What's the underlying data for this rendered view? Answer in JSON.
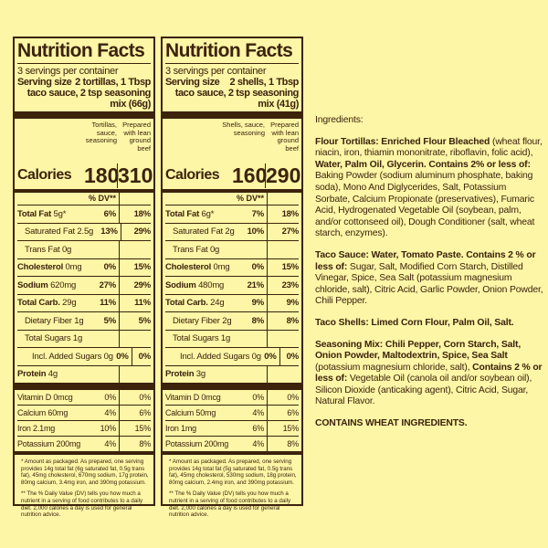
{
  "panels": [
    {
      "title": "Nutrition Facts",
      "servings": "3 servings per container",
      "serving_size_label": "Serving size",
      "serving_size": "2 tortillas, 1 Tbsp taco sauce, 2 tsp seasoning mix (66g)",
      "col_headers": [
        "Tortillas, sauce, seasoning",
        "Prepared with lean ground beef"
      ],
      "calories_label": "Calories",
      "calories": [
        "180",
        "310"
      ],
      "dv_header": "% DV**",
      "rows": [
        {
          "name": "Total Fat",
          "amount": "5g*",
          "dv": [
            "6%",
            "18%"
          ],
          "style": "bold"
        },
        {
          "name": "Saturated Fat",
          "amount": "2.5g",
          "dv": [
            "13%",
            "29%"
          ],
          "style": "indent"
        },
        {
          "name": "Trans Fat",
          "amount": "0g",
          "dv": [],
          "style": "indent"
        },
        {
          "name": "Cholesterol",
          "amount": "0mg",
          "dv": [
            "0%",
            "15%"
          ],
          "style": "bold"
        },
        {
          "name": "Sodium",
          "amount": "620mg",
          "dv": [
            "27%",
            "29%"
          ],
          "style": "bold"
        },
        {
          "name": "Total Carb.",
          "amount": "29g",
          "dv": [
            "11%",
            "11%"
          ],
          "style": "bold"
        },
        {
          "name": "Dietary Fiber",
          "amount": "1g",
          "dv": [
            "5%",
            "5%"
          ],
          "style": "indent"
        },
        {
          "name": "Total Sugars",
          "amount": "1g",
          "dv": [],
          "style": "indent"
        },
        {
          "name": "Incl. Added Sugars",
          "amount": "0g",
          "dv": [
            "0%",
            "0%"
          ],
          "style": "indent2"
        },
        {
          "name": "Protein",
          "amount": "4g",
          "dv": [],
          "style": "bold"
        }
      ],
      "micros": [
        {
          "name": "Vitamin D",
          "amount": "0mcg",
          "dv": [
            "0%",
            "0%"
          ]
        },
        {
          "name": "Calcium",
          "amount": "60mg",
          "dv": [
            "4%",
            "6%"
          ]
        },
        {
          "name": "Iron",
          "amount": "2.1mg",
          "dv": [
            "10%",
            "15%"
          ]
        },
        {
          "name": "Potassium",
          "amount": "200mg",
          "dv": [
            "4%",
            "8%"
          ]
        }
      ],
      "footnotes": [
        "* Amount as packaged. As prepared, one serving provides 14g total fat (6g saturated fat, 0.5g trans fat), 45mg cholesterol, 670mg sodium, 17g protein, 80mg calcium, 3.4mg iron, and 390mg potassium.",
        "** The % Daily Value (DV) tells you how much a nutrient in a serving of food contributes to a daily diet. 2,000 calories a day is used for general nutrition advice."
      ]
    },
    {
      "title": "Nutrition Facts",
      "servings": "3 servings per container",
      "serving_size_label": "Serving size",
      "serving_size": "2 shells, 1 Tbsp taco sauce, 2 tsp seasoning mix (41g)",
      "col_headers": [
        "Shells, sauce, seasoning",
        "Prepared with lean ground beef"
      ],
      "calories_label": "Calories",
      "calories": [
        "160",
        "290"
      ],
      "dv_header": "% DV**",
      "rows": [
        {
          "name": "Total Fat",
          "amount": "6g*",
          "dv": [
            "7%",
            "18%"
          ],
          "style": "bold"
        },
        {
          "name": "Saturated Fat",
          "amount": "2g",
          "dv": [
            "10%",
            "27%"
          ],
          "style": "indent"
        },
        {
          "name": "Trans Fat",
          "amount": "0g",
          "dv": [],
          "style": "indent"
        },
        {
          "name": "Cholesterol",
          "amount": "0mg",
          "dv": [
            "0%",
            "15%"
          ],
          "style": "bold"
        },
        {
          "name": "Sodium",
          "amount": "480mg",
          "dv": [
            "21%",
            "23%"
          ],
          "style": "bold"
        },
        {
          "name": "Total Carb.",
          "amount": "24g",
          "dv": [
            "9%",
            "9%"
          ],
          "style": "bold"
        },
        {
          "name": "Dietary Fiber",
          "amount": "2g",
          "dv": [
            "8%",
            "8%"
          ],
          "style": "indent"
        },
        {
          "name": "Total Sugars",
          "amount": "1g",
          "dv": [],
          "style": "indent"
        },
        {
          "name": "Incl. Added Sugars",
          "amount": "0g",
          "dv": [
            "0%",
            "0%"
          ],
          "style": "indent2"
        },
        {
          "name": "Protein",
          "amount": "3g",
          "dv": [],
          "style": "bold"
        }
      ],
      "micros": [
        {
          "name": "Vitamin D",
          "amount": "0mcg",
          "dv": [
            "0%",
            "0%"
          ]
        },
        {
          "name": "Calcium",
          "amount": "50mg",
          "dv": [
            "4%",
            "6%"
          ]
        },
        {
          "name": "Iron",
          "amount": "1mg",
          "dv": [
            "6%",
            "15%"
          ]
        },
        {
          "name": "Potassium",
          "amount": "200mg",
          "dv": [
            "4%",
            "8%"
          ]
        }
      ],
      "footnotes": [
        "* Amount as packaged. As prepared, one serving provides 14g total fat (5g saturated fat, 0.5g trans fat), 45mg cholesterol, 530mg sodium, 18g protein, 80mg calcium, 2.4mg iron, and 390mg potassium.",
        "** The % Daily Value (DV) tells you how much a nutrient in a serving of food contributes to a daily diet. 2,000 calories a day is used for general nutrition advice."
      ]
    }
  ],
  "ingredients": {
    "heading": "Ingredients:",
    "paragraphs": [
      [
        {
          "text": "Flour Tortillas: Enriched Flour Bleached",
          "bold": true
        },
        {
          "text": " (wheat flour, niacin, iron, thiamin mononitrate, riboflavin, folic acid), ",
          "bold": false
        },
        {
          "text": "Water, Palm Oil, Glycerin. Contains 2% or less of:",
          "bold": true
        },
        {
          "text": " Baking Powder (sodium aluminum phosphate, baking soda), Mono And Diglycerides, Salt, Potassium Sorbate, Calcium Propionate (preservatives), Fumaric Acid, Hydrogenated Vegetable Oil (soybean, palm, and/or cottonseed oil), Dough Conditioner (salt, wheat starch, enzymes).",
          "bold": false
        }
      ],
      [
        {
          "text": "Taco Sauce: Water, Tomato Paste. Contains 2 % or less of:",
          "bold": true
        },
        {
          "text": " Sugar, Salt, Modified Corn Starch, Distilled Vinegar, Spice, Sea Salt (potassium magnesium chloride, salt), Citric Acid, Garlic Powder, Onion Powder, Chili Pepper.",
          "bold": false
        }
      ],
      [
        {
          "text": "Taco Shells: Limed Corn Flour, Palm Oil, Salt.",
          "bold": true
        }
      ],
      [
        {
          "text": "Seasoning Mix: Chili Pepper, Corn Starch, Salt, Onion Powder, Maltodextrin, Spice, Sea Salt",
          "bold": true
        },
        {
          "text": " (potassium magnesium chloride, salt), ",
          "bold": false
        },
        {
          "text": "Contains 2 % or less of:",
          "bold": true
        },
        {
          "text": " Vegetable Oil (canola oil and/or soybean oil), Silicon Dioxide (anticaking agent), Citric Acid, Sugar, Natural Flavor.",
          "bold": false
        }
      ],
      [
        {
          "text": "CONTAINS WHEAT INGREDIENTS.",
          "bold": true
        }
      ]
    ]
  }
}
